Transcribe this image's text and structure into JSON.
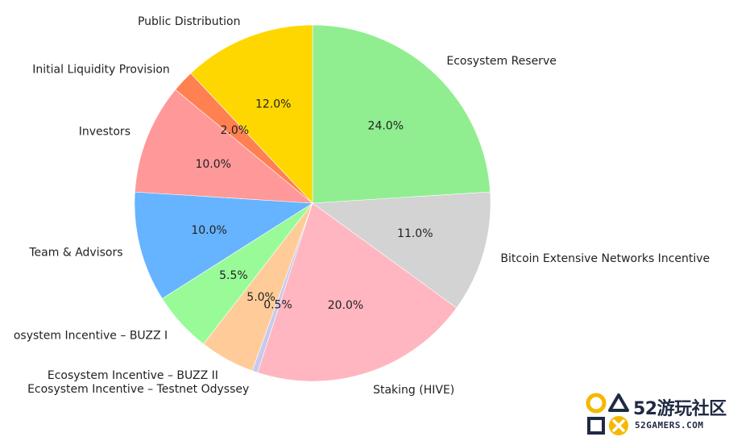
{
  "chart_data": {
    "type": "pie",
    "slices": [
      {
        "label": "Ecosystem Reserve",
        "value": 24.0,
        "pct_text": "24.0%",
        "color": "#90EE90"
      },
      {
        "label": "Bitcoin Extensive Networks Incentive",
        "value": 11.0,
        "pct_text": "11.0%",
        "color": "#D3D3D3"
      },
      {
        "label": "Staking (HIVE)",
        "value": 20.0,
        "pct_text": "20.0%",
        "color": "#FFB6C1"
      },
      {
        "label": "Ecosystem Incentive – Testnet Odyssey",
        "value": 0.5,
        "pct_text": "0.5%",
        "color": "#C8C8F0"
      },
      {
        "label": "Ecosystem Incentive – BUZZ II",
        "value": 5.0,
        "pct_text": "5.0%",
        "color": "#FFCC99"
      },
      {
        "label": "osystem Incentive – BUZZ I",
        "value": 5.5,
        "pct_text": "5.5%",
        "color": "#98FB98"
      },
      {
        "label": "Team & Advisors",
        "value": 10.0,
        "pct_text": "10.0%",
        "color": "#66B3FF"
      },
      {
        "label": "Investors",
        "value": 10.0,
        "pct_text": "10.0%",
        "color": "#FF9999"
      },
      {
        "label": "Initial Liquidity Provision",
        "value": 2.0,
        "pct_text": "2.0%",
        "color": "#FF8050"
      },
      {
        "label": "Public Distribution",
        "value": 12.0,
        "pct_text": "12.0%",
        "color": "#FFD700"
      }
    ]
  },
  "watermark": {
    "main": "52游玩社区",
    "sub": "52GAMERS.COM"
  }
}
